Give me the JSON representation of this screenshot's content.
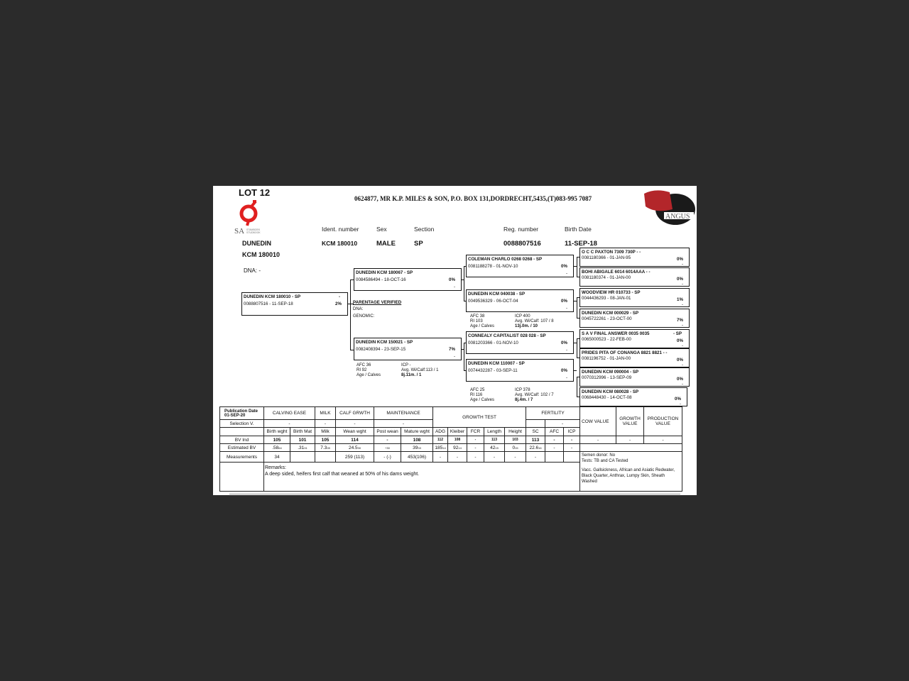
{
  "lot": "LOT 12",
  "header": "0624877,  MR K.P. MILES & SON, P.O. BOX 131,DORDRECHT,5435,(T)083-995 7087",
  "logos": {
    "left": "SA STAMBOEK STUDBOOK",
    "right": "ANGUS"
  },
  "labels": {
    "ident": "Ident. number",
    "sex": "Sex",
    "section": "Section",
    "reg": "Reg. number",
    "birth": "Birth Date"
  },
  "animal": {
    "name": "DUNEDIN",
    "name2": "KCM 180010",
    "ident": "KCM 180010",
    "sex": "MALE",
    "section": "SP",
    "reg": "0088807516",
    "birth": "11-SEP-18",
    "dna": "DNA: -"
  },
  "parentage": {
    "title": "PARENTAGE VERIFIED",
    "dna": "DNA:",
    "genomic": "GENOMIC:"
  },
  "pedigree": [
    {
      "role": "subject",
      "name": "DUNEDIN KCM 180010 - SP",
      "reg": "0088807516 -  11-SEP-18",
      "pct": "2%",
      "top": "-"
    },
    {
      "role": "sire",
      "name": "DUNEDIN KCM 180067 - SP",
      "reg": "0084586494 - 18-OCT-16",
      "pct": "0%",
      "dash": "-"
    },
    {
      "role": "dam",
      "name": "DUNEDIN KCM 150021 - SP",
      "reg": "0082408394 - 23-SEP-15",
      "pct": "7%",
      "dash": "-"
    },
    {
      "role": "sire-sire",
      "name": "COLEMAN CHARLO 0268 0268 - SP",
      "reg": "0081188278 - 01-NOV-10",
      "pct": "0%",
      "dash": "-"
    },
    {
      "role": "sire-dam",
      "name": "DUNEDIN KCM 040038 - SP",
      "reg": "0049536329 - 06-OCT-04",
      "pct": "0%",
      "dash": "-"
    },
    {
      "role": "dam-sire",
      "name": "CONNEALY CAPITALIST 028 028 - SP",
      "reg": "0081203366 - 01-NOV-10",
      "pct": "0%",
      "dash": "-"
    },
    {
      "role": "dam-dam",
      "name": "DUNEDIN KCM 110007 - SP",
      "reg": "0074432287 - 03-SEP-11",
      "pct": "0%",
      "dash": "-"
    },
    {
      "role": "ggp",
      "name": "O C C PAXTON 7309 730P - -",
      "reg": "0081180366 - 01-JAN-95",
      "pct": "0%",
      "dash": "-"
    },
    {
      "role": "ggp",
      "name": "BOHI ABIGALE 6014 6014AAA - -",
      "reg": "0081180374 - 01-JAN-00",
      "pct": "0%",
      "dash": "-"
    },
    {
      "role": "ggp",
      "name": "WOODVIEW HR  010733 - SP",
      "reg": "0044436293 - 08-JAN-01",
      "pct": "1%",
      "dash": "-"
    },
    {
      "role": "ggp",
      "name": "DUNEDIN KCM 000029 - SP",
      "reg": "0045722261 - 23-OCT-00",
      "pct": "7%",
      "dash": "-"
    },
    {
      "role": "ggp",
      "name": "S A V FINAL ANSWER 0035 0035",
      "reg": "0065000523 - 22-FEB-00",
      "pct": "0%",
      "dash": "-",
      "top": "- SP"
    },
    {
      "role": "ggp",
      "name": "PRIDES PITA OF CONANGA 8821 8821 - -",
      "reg": "0081196752 - 01-JAN-00",
      "pct": "0%",
      "dash": "-"
    },
    {
      "role": "ggp",
      "name": "DUNEDIN KCM 090004 - SP",
      "reg": "0070312996 - 13-SEP-09",
      "pct": "0%",
      "dash": "-"
    },
    {
      "role": "ggp",
      "name": "DUNEDIN KCM 080028 - SP",
      "reg": "0068448430 - 14-OCT-08",
      "pct": "0%",
      "dash": "-"
    }
  ],
  "stats": [
    {
      "of": "dam",
      "afc": "AFC     36",
      "ri": "RI   92",
      "age": "Age / Calves",
      "icp": "ICP        -",
      "avg": "Avg. Wi/Calf:113 / 1",
      "agev": "8j.11m. / 1"
    },
    {
      "of": "sire-dam",
      "afc": "AFC      38",
      "ri": "RI      103",
      "age": "Age / Calves",
      "icp": "ICP        400",
      "avg": "Avg. Wi/Calf:  107 / 8",
      "agev": "13j.0m. / 10"
    },
    {
      "of": "dam-dam",
      "afc": "AFC      25",
      "ri": "RI      116",
      "age": "Age / Calves",
      "icp": "ICP        378",
      "avg": "Avg. Wi/Calf:  102 / 7",
      "agev": "8j.4m. / 7"
    }
  ],
  "table": {
    "pub_label": "Publication Date",
    "pub_date": "01-SEP-20",
    "groups": {
      "calving": "CALVING EASE",
      "milk": "MILK",
      "calf": "CALF GRWTH",
      "maint": "MAINTENANCE",
      "growth": "GROWTH TEST",
      "fert": "FERTILITY",
      "cow": "COW VALUE",
      "gval": "GROWTH VALUE",
      "prod": "PRODUCTION VALUE"
    },
    "selection_label": "Selection V.",
    "selection": [
      "-",
      "-",
      "-",
      "-",
      "-"
    ],
    "columns": [
      "Birth wght",
      "Birth Mat",
      "Milk",
      "Wean wght",
      "Post wean",
      "Mature wght",
      "ADG",
      "Kleiber",
      "FCR",
      "Length",
      "Height",
      "SC",
      "AFC",
      "ICP"
    ],
    "bv_label": "BV Ind",
    "bv": [
      "105",
      "101",
      "105",
      "114",
      "-",
      "108",
      "112",
      "108",
      "-",
      "113",
      "103",
      "113",
      "-",
      "-"
    ],
    "bv_values": [
      "-",
      "-",
      "-"
    ],
    "est_label": "Estimated BV",
    "est": [
      [
        ".58",
        "64"
      ],
      [
        ".31",
        "31"
      ],
      [
        "7.3",
        "28"
      ],
      [
        "24.5",
        "30"
      ],
      [
        "-",
        "30"
      ],
      [
        "39",
        "33"
      ],
      [
        "185",
        "14"
      ],
      [
        "92",
        "14"
      ],
      [
        "-",
        ""
      ],
      [
        "42",
        "15"
      ],
      [
        "0",
        "15"
      ],
      [
        "22.6",
        "16"
      ],
      [
        "-",
        ""
      ],
      [
        "-",
        ""
      ]
    ],
    "meas_label": "Measurements",
    "meas": [
      "34",
      "",
      "",
      "259 (113)",
      "-  (-)",
      "453(106)",
      "-",
      "-",
      "-",
      "-",
      "-",
      "-",
      "",
      ""
    ],
    "remarks_label": "Remarks:",
    "remarks": "A deep sided, heifers first calf that weaned at 50% of his dams weight.",
    "semen": "Semen donor: No",
    "tests": "Tests: TB and CA Tested",
    "vacc": "Vacc. Gallsickness, African and Asiatic Redwater, Black Quarter, Anthrax, Lumpy Skin, Sheath Washed"
  }
}
